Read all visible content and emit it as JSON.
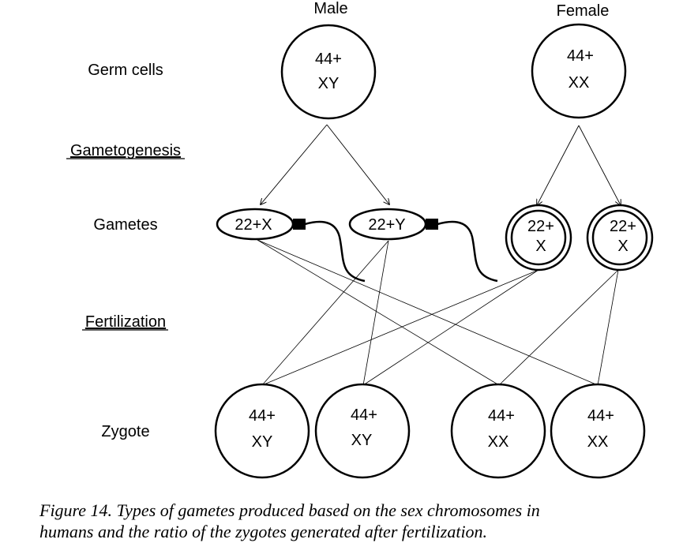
{
  "headers": {
    "male": "Male",
    "female": "Female"
  },
  "row_labels": {
    "germ_cells": "Germ cells",
    "gametogenesis": "Gametogenesis",
    "gametes": "Gametes",
    "fertilization": "Fertilization",
    "zygote": "Zygote"
  },
  "germ_cells": {
    "male": {
      "line1": "44+",
      "line2": "XY"
    },
    "female": {
      "line1": "44+",
      "line2": "XX"
    }
  },
  "gametes": {
    "sperm_x": "22+X",
    "sperm_y": "22+Y",
    "egg_1": {
      "line1": "22+",
      "line2": "X"
    },
    "egg_2": {
      "line1": "22+",
      "line2": "X"
    }
  },
  "zygotes": [
    {
      "line1": "44+",
      "line2": "XY"
    },
    {
      "line1": "44+",
      "line2": "XY"
    },
    {
      "line1": "44+",
      "line2": "XX"
    },
    {
      "line1": "44+",
      "line2": "XX"
    }
  ],
  "caption": {
    "line1": "Figure 14. Types of gametes produced based on the sex chromosomes in",
    "line2": "humans and the ratio of the zygotes generated after fertilization."
  }
}
